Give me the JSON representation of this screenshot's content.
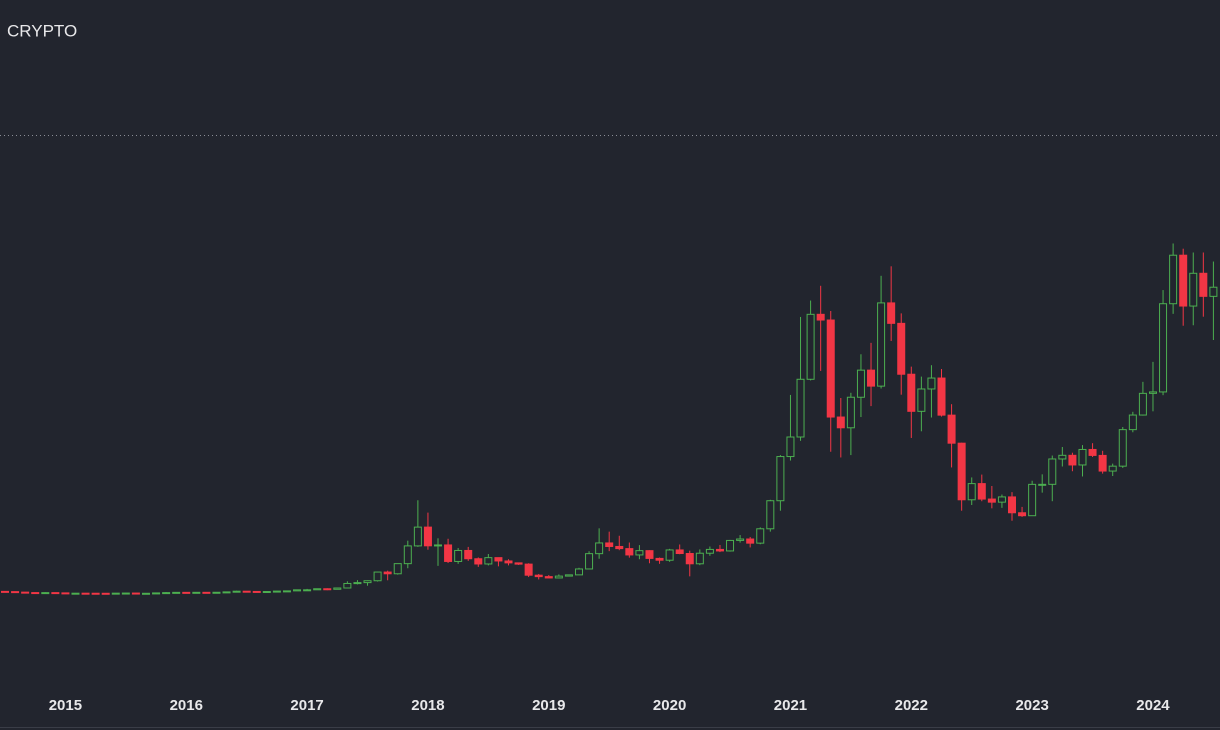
{
  "chart_data": {
    "type": "candlestick",
    "title": "CRYPTO",
    "categories": [
      null,
      null,
      null,
      null,
      null,
      null,
      "2015",
      null,
      null,
      null,
      null,
      null,
      null,
      null,
      null,
      null,
      null,
      null,
      "2016",
      null,
      null,
      null,
      null,
      null,
      null,
      null,
      null,
      null,
      null,
      null,
      "2017",
      null,
      null,
      null,
      null,
      null,
      null,
      null,
      null,
      null,
      null,
      null,
      "2018",
      null,
      null,
      null,
      null,
      null,
      null,
      null,
      null,
      null,
      null,
      null,
      "2019",
      null,
      null,
      null,
      null,
      null,
      null,
      null,
      null,
      null,
      null,
      null,
      "2020",
      null,
      null,
      null,
      null,
      null,
      null,
      null,
      null,
      null,
      null,
      null,
      "2021",
      null,
      null,
      null,
      null,
      null,
      null,
      null,
      null,
      null,
      null,
      null,
      "2022",
      null,
      null,
      null,
      null,
      null,
      null,
      null,
      null,
      null,
      null,
      null,
      "2023",
      null,
      null,
      null,
      null,
      null,
      null,
      null,
      null,
      null,
      null,
      null,
      "2024",
      null,
      null,
      null,
      null,
      null,
      null
    ],
    "open": [
      635,
      587,
      478,
      386,
      338,
      378,
      320,
      217,
      254,
      244,
      236,
      230,
      263,
      284,
      230,
      236,
      314,
      378,
      430,
      369,
      437,
      416,
      448,
      531,
      673,
      624,
      575,
      609,
      698,
      742,
      964,
      970,
      1190,
      1080,
      1348,
      2300,
      2480,
      2875,
      4700,
      4340,
      6470,
      10200,
      14150,
      10220,
      10400,
      6930,
      9240,
      7500,
      6400,
      7730,
      7030,
      6630,
      6370,
      4040,
      3740,
      3460,
      3850,
      4110,
      5350,
      8570,
      10820,
      10080,
      9630,
      8300,
      9200,
      7570,
      7190,
      9350,
      8600,
      6440,
      8660,
      9460,
      9140,
      11350,
      11650,
      10780,
      13800,
      19700,
      28990,
      33100,
      45240,
      58900,
      57700,
      37300,
      35040,
      41460,
      47160,
      43800,
      61300,
      57000,
      46300,
      38500,
      43200,
      45500,
      37700,
      31800,
      19900,
      23300,
      20050,
      19400,
      20500,
      17170,
      16550,
      23140,
      23150,
      28480,
      29250,
      27220,
      30480,
      29230,
      25940,
      26970,
      34650,
      37720,
      42280,
      42580,
      61130,
      71330,
      60640,
      67530,
      62680
    ],
    "high": [
      650,
      600,
      490,
      415,
      460,
      385,
      320,
      300,
      300,
      260,
      250,
      270,
      315,
      285,
      245,
      340,
      500,
      470,
      460,
      450,
      440,
      470,
      550,
      780,
      700,
      630,
      610,
      740,
      750,
      980,
      1160,
      1210,
      1290,
      1350,
      2760,
      3000,
      2950,
      4740,
      5000,
      6470,
      11300,
      19800,
      17200,
      11800,
      11700,
      9750,
      9990,
      7780,
      8500,
      7770,
      7400,
      6700,
      6550,
      4300,
      4070,
      4200,
      4150,
      5600,
      9080,
      13900,
      13200,
      12330,
      10910,
      10370,
      9280,
      7750,
      9580,
      10500,
      9200,
      9460,
      10070,
      10400,
      11460,
      12480,
      12080,
      14100,
      19900,
      29300,
      41950,
      58350,
      61800,
      64900,
      59600,
      41300,
      42400,
      50500,
      52900,
      67000,
      69000,
      59100,
      47900,
      45800,
      48200,
      47400,
      40000,
      31900,
      24600,
      25200,
      22800,
      21000,
      21500,
      18400,
      23900,
      25250,
      29200,
      31000,
      29800,
      31400,
      31800,
      30200,
      27500,
      35200,
      38400,
      44700,
      48900,
      64000,
      73800,
      72700,
      71900,
      71900,
      70000
    ],
    "low": [
      565,
      450,
      360,
      275,
      325,
      310,
      170,
      210,
      240,
      210,
      225,
      220,
      255,
      200,
      225,
      235,
      310,
      350,
      355,
      365,
      395,
      415,
      440,
      525,
      470,
      550,
      580,
      605,
      680,
      740,
      750,
      920,
      890,
      1060,
      1340,
      2100,
      1830,
      2700,
      2970,
      4160,
      5500,
      10000,
      9400,
      6000,
      6600,
      6430,
      7050,
      5790,
      6100,
      5900,
      6100,
      6200,
      3650,
      3150,
      3400,
      3380,
      3780,
      4080,
      5340,
      7500,
      9100,
      9300,
      7730,
      7400,
      6550,
      6430,
      6850,
      8450,
      3800,
      6150,
      8120,
      8900,
      9000,
      10900,
      9880,
      10540,
      13200,
      17600,
      28150,
      32300,
      45000,
      47000,
      30000,
      28800,
      29300,
      37300,
      39600,
      43300,
      53300,
      42000,
      32900,
      34300,
      37200,
      37400,
      26700,
      17600,
      18800,
      19600,
      18100,
      18200,
      15500,
      16300,
      16500,
      21400,
      19600,
      26900,
      25900,
      24800,
      28900,
      25400,
      24900,
      26600,
      34100,
      37600,
      38500,
      41900,
      59000,
      56500,
      56600,
      58400,
      53500
    ],
    "close": [
      587,
      478,
      386,
      338,
      378,
      320,
      217,
      254,
      244,
      236,
      230,
      263,
      284,
      230,
      236,
      314,
      378,
      430,
      369,
      437,
      416,
      448,
      531,
      673,
      624,
      575,
      609,
      698,
      742,
      964,
      970,
      1190,
      1080,
      1348,
      2300,
      2480,
      2875,
      4700,
      4340,
      6470,
      10200,
      14150,
      10220,
      10400,
      6930,
      9240,
      7500,
      6400,
      7730,
      7030,
      6630,
      6370,
      4040,
      3740,
      3460,
      3850,
      4110,
      5350,
      8570,
      10820,
      10080,
      9630,
      8300,
      9200,
      7570,
      7190,
      9350,
      8600,
      6440,
      8660,
      9460,
      9140,
      11350,
      11650,
      10780,
      13800,
      19700,
      28990,
      33100,
      45240,
      58900,
      57700,
      37300,
      35040,
      41460,
      47160,
      43800,
      61300,
      57000,
      46300,
      38500,
      43200,
      45500,
      37700,
      31800,
      19900,
      23300,
      20050,
      19400,
      20500,
      17170,
      16550,
      23140,
      23150,
      28480,
      29250,
      27220,
      30480,
      29230,
      25940,
      26970,
      34650,
      37720,
      42280,
      42580,
      61130,
      71330,
      60640,
      67530,
      62680,
      64600
    ],
    "ylim": [
      -18000,
      125000
    ],
    "up_color": "#4caf50",
    "down_color": "#f23645"
  }
}
